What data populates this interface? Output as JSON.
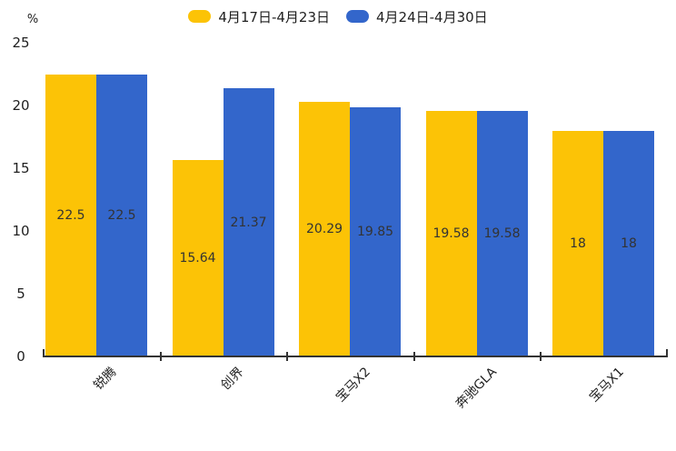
{
  "chart_data": {
    "type": "bar",
    "title": "",
    "ylabel": "%",
    "categories": [
      "锐腾",
      "创界",
      "宝马X2",
      "奔驰GLA",
      "宝马X1"
    ],
    "series": [
      {
        "name": "4月17日-4月23日",
        "color": "#FCC306",
        "values": [
          22.5,
          15.64,
          20.29,
          19.58,
          18
        ]
      },
      {
        "name": "4月24日-4月30日",
        "color": "#3366CB",
        "values": [
          22.5,
          21.37,
          19.85,
          19.58,
          18
        ]
      }
    ],
    "value_labels": [
      [
        "22.5",
        "15.64",
        "20.29",
        "19.58",
        "18"
      ],
      [
        "22.5",
        "21.37",
        "19.85",
        "19.58",
        "18"
      ]
    ],
    "ylim": [
      0,
      25
    ],
    "yticks": [
      0,
      5,
      10,
      15,
      20,
      25
    ],
    "grid": false,
    "legend_position": "top",
    "x_label_rotation_deg": -45
  },
  "colors": {
    "series_1": "#FCC306",
    "series_2": "#3366CB",
    "axis": "#333333",
    "text": "#1f1f1f",
    "value_label": "#333333",
    "background": "#FFFFFF"
  }
}
